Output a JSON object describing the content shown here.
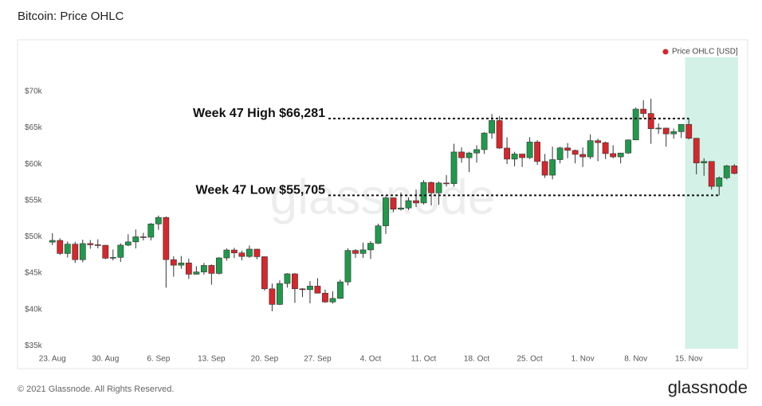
{
  "chart_data": {
    "type": "candlestick",
    "title": "Bitcoin: Price OHLC",
    "watermark": "glassnode",
    "categories": [
      "23. Aug",
      null,
      null,
      null,
      null,
      null,
      null,
      "30. Aug",
      null,
      null,
      null,
      null,
      null,
      null,
      "6. Sep",
      null,
      null,
      null,
      null,
      null,
      null,
      "13. Sep",
      null,
      null,
      null,
      null,
      null,
      null,
      "20. Sep",
      null,
      null,
      null,
      null,
      null,
      null,
      "27. Sep",
      null,
      null,
      null,
      null,
      null,
      null,
      "4. Oct",
      null,
      null,
      null,
      null,
      null,
      null,
      "11. Oct",
      null,
      null,
      null,
      null,
      null,
      null,
      "18. Oct",
      null,
      null,
      null,
      null,
      null,
      null,
      "25. Oct",
      null,
      null,
      null,
      null,
      null,
      null,
      "1. Nov",
      null,
      null,
      null,
      null,
      null,
      null,
      "8. Nov",
      null,
      null,
      null,
      null,
      null,
      null,
      "15. Nov",
      null,
      null,
      null,
      null,
      null,
      null
    ],
    "series": [
      {
        "name": "Price OHLC [USD]",
        "color": "#d7262c",
        "up_color": "#1f9a4b",
        "down_color": "#d7262c",
        "open": [
          49260,
          49500,
          47700,
          48990,
          46850,
          49070,
          48900,
          48830,
          47050,
          47170,
          48850,
          49300,
          50000,
          49940,
          51770,
          52660,
          46860,
          46090,
          46400,
          44850,
          45160,
          46060,
          44960,
          47090,
          48180,
          47780,
          47290,
          48300,
          47260,
          42840,
          40690,
          43570,
          44900,
          42840,
          42720,
          43210,
          42240,
          41030,
          41520,
          43790,
          48120,
          47710,
          48200,
          49110,
          51510,
          55360,
          53800,
          53970,
          54970,
          54660,
          57480,
          56040,
          57400,
          57320,
          61670,
          60880,
          61530,
          62000,
          64280,
          66000,
          62210,
          60690,
          61390,
          60890,
          63040,
          60360,
          58480,
          60620,
          62230,
          61890,
          61340,
          61000,
          63230,
          62960,
          61450,
          61000,
          61530,
          63330,
          67570,
          66970,
          64880,
          64960,
          64160,
          64470,
          65470,
          63560,
          60160,
          60370,
          56940,
          58120,
          59760
        ],
        "high": [
          50500,
          49800,
          49350,
          49300,
          49600,
          49550,
          49650,
          48900,
          48250,
          49100,
          50350,
          51000,
          50550,
          51900,
          52920,
          52800,
          47330,
          47350,
          47000,
          45950,
          46400,
          46200,
          47200,
          48400,
          48480,
          48100,
          48800,
          48320,
          47300,
          43550,
          44000,
          45000,
          45000,
          42950,
          43900,
          44300,
          42750,
          42500,
          44100,
          48400,
          48300,
          49200,
          49400,
          51800,
          55600,
          55400,
          56100,
          55400,
          56500,
          57800,
          57600,
          57600,
          58500,
          62800,
          62300,
          61700,
          62600,
          64400,
          66900,
          66600,
          63700,
          61700,
          61400,
          63700,
          63300,
          61400,
          62400,
          62400,
          62900,
          62000,
          62300,
          64100,
          63500,
          63100,
          62600,
          61550,
          63400,
          67800,
          68790,
          69000,
          65600,
          65000,
          64900,
          65500,
          66300,
          63600,
          60800,
          60400,
          58300,
          59900,
          60000
        ],
        "low": [
          48850,
          47500,
          47150,
          46400,
          46500,
          48350,
          48400,
          46900,
          46750,
          46550,
          48700,
          48400,
          49500,
          49500,
          50950,
          43000,
          44500,
          45600,
          44200,
          44800,
          44800,
          43400,
          44800,
          46700,
          47050,
          46750,
          47100,
          46900,
          42600,
          39750,
          40600,
          43000,
          40900,
          41700,
          40850,
          42200,
          40900,
          40800,
          41450,
          43300,
          47100,
          47100,
          46950,
          49000,
          50400,
          53400,
          53600,
          53700,
          54100,
          54450,
          54300,
          54400,
          56900,
          56900,
          60200,
          58900,
          60200,
          61400,
          63500,
          62100,
          60000,
          59700,
          59600,
          60700,
          59900,
          58100,
          57900,
          60100,
          60800,
          60100,
          59600,
          60700,
          60400,
          60700,
          60800,
          60100,
          61400,
          63300,
          66400,
          62800,
          64150,
          62400,
          63500,
          63600,
          63400,
          58600,
          58400,
          56500,
          55700,
          57900,
          58600
        ],
        "close": [
          49500,
          47700,
          48990,
          46850,
          49070,
          48900,
          48830,
          47050,
          47170,
          48850,
          49300,
          50000,
          49940,
          51770,
          52660,
          46860,
          46090,
          46400,
          44850,
          45160,
          46060,
          44960,
          47090,
          48180,
          47780,
          47290,
          48300,
          47260,
          42840,
          40690,
          43570,
          44900,
          42840,
          42720,
          43210,
          42240,
          41030,
          41520,
          43790,
          48120,
          47710,
          48200,
          49110,
          51510,
          55360,
          53800,
          53970,
          54970,
          54660,
          57480,
          56040,
          57400,
          57320,
          61670,
          60880,
          61530,
          62000,
          64280,
          66000,
          62210,
          60690,
          61390,
          60890,
          63040,
          60360,
          58480,
          60620,
          62230,
          61890,
          61340,
          61000,
          63230,
          62960,
          61450,
          61000,
          61530,
          63330,
          67570,
          66970,
          64880,
          64960,
          64160,
          64470,
          65470,
          63560,
          60160,
          60370,
          56940,
          58120,
          59760,
          58720
        ]
      }
    ],
    "ylim": [
      34600,
      74700
    ],
    "yticks": [
      {
        "value": 35000,
        "label": "$35k"
      },
      {
        "value": 40000,
        "label": "$40k"
      },
      {
        "value": 45000,
        "label": "$45k"
      },
      {
        "value": 50000,
        "label": "$50k"
      },
      {
        "value": 55000,
        "label": "$55k"
      },
      {
        "value": 60000,
        "label": "$60k"
      },
      {
        "value": 65000,
        "label": "$65k"
      },
      {
        "value": 70000,
        "label": "$70k"
      }
    ],
    "highlight": {
      "start": "15. Nov",
      "color": "#d3f1e6"
    },
    "annotations": [
      {
        "text": "Week 47 High $66,281",
        "value": 66281
      },
      {
        "text": "Week 47 Low $55,705",
        "value": 55705
      }
    ],
    "legend": "top-right"
  },
  "footer": {
    "copyright": "© 2021 Glassnode. All Rights Reserved.",
    "logo": "glassnode"
  }
}
